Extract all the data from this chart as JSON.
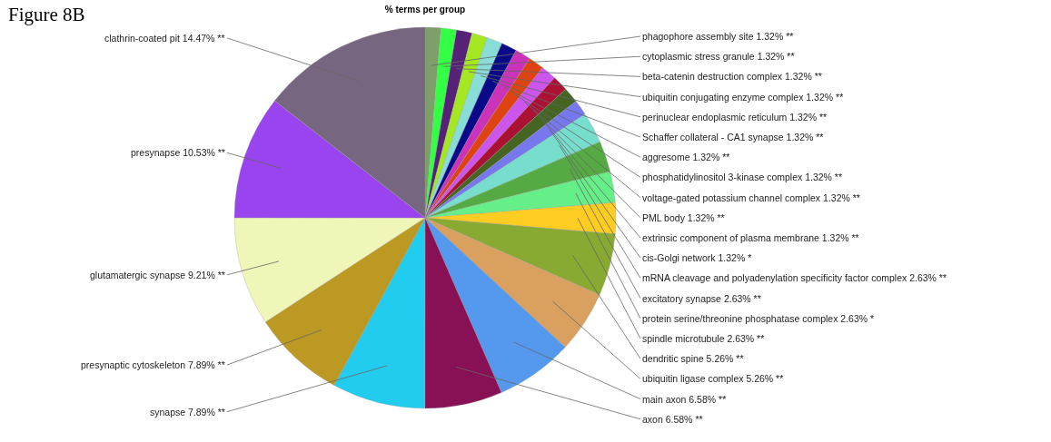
{
  "chart_data": {
    "type": "pie",
    "title": "% terms per group",
    "categories": [
      "phagophore assembly site",
      "cytoplasmic stress granule",
      "beta-catenin destruction complex",
      "ubiquitin conjugating enzyme complex",
      "perinuclear endoplasmic reticulum",
      "Schaffer collateral - CA1 synapse",
      "aggresome",
      "phosphatidylinositol 3-kinase complex",
      "voltage-gated potassium channel complex",
      "PML body",
      "extrinsic component of plasma membrane",
      "cis-Golgi network",
      "mRNA cleavage and polyadenylation specificity factor complex",
      "excitatory synapse",
      "protein serine/threonine phosphatase complex",
      "spindle microtubule",
      "dendritic spine",
      "ubiquitin ligase complex",
      "main axon",
      "axon",
      "synapse",
      "presynaptic cytoskeleton",
      "glutamatergic synapse",
      "presynapse",
      "clathrin-coated pit"
    ],
    "values": [
      1.32,
      1.32,
      1.32,
      1.32,
      1.32,
      1.32,
      1.32,
      1.32,
      1.32,
      1.32,
      1.32,
      1.32,
      2.63,
      2.63,
      2.63,
      2.63,
      5.26,
      5.26,
      6.58,
      6.58,
      7.89,
      7.89,
      9.21,
      10.53,
      14.47
    ],
    "value_labels": [
      "1.32% **",
      "1.32% **",
      "1.32% **",
      "1.32% **",
      "1.32% **",
      "1.32% **",
      "1.32% **",
      "1.32% **",
      "1.32% **",
      "1.32% **",
      "1.32% **",
      "1.32% *",
      "2.63% **",
      "2.63% **",
      "2.63% *",
      "2.63% **",
      "5.26% **",
      "5.26% **",
      "6.58% **",
      "6.58% **",
      "7.89% **",
      "7.89% **",
      "9.21% **",
      "10.53% **",
      "14.47% **"
    ],
    "colors": [
      "#7f9f6a",
      "#33ff44",
      "#552277",
      "#a5e822",
      "#88ddd8",
      "#0a0a88",
      "#cc33bb",
      "#dd4411",
      "#cc55ee",
      "#aa1133",
      "#446622",
      "#7777ee",
      "#77ddcc",
      "#55aa44",
      "#66ee88",
      "#ffcc22",
      "#88aa33",
      "#d9a060",
      "#5599ee",
      "#881155",
      "#22ccee",
      "#bb9922",
      "#f0f5b8",
      "#9944ee",
      "#776680"
    ],
    "annotations": [
      "Figure 8B"
    ]
  }
}
